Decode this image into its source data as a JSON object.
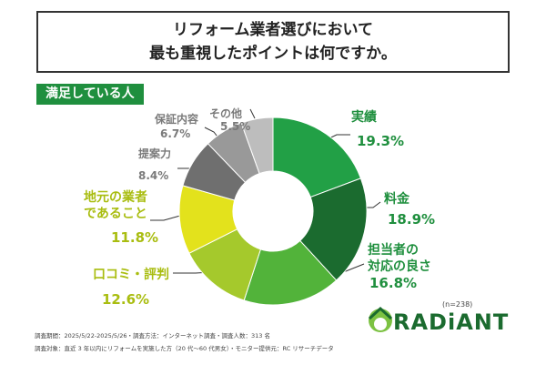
{
  "chart_data": {
    "type": "donut",
    "title": "リフォーム業者選びにおいて\n最も重視したポイントは何ですか。",
    "subtitle": "満足している人",
    "categories": [
      "実績",
      "料金",
      "担当者の\n対応の良さ",
      "口コミ・評判",
      "地元の業者\nであること",
      "提案力",
      "保証内容",
      "その他"
    ],
    "values": [
      19.3,
      18.9,
      16.8,
      12.6,
      11.8,
      8.4,
      6.7,
      5.5
    ],
    "value_labels": [
      "19.3%",
      "18.9%",
      "16.8%",
      "12.6%",
      "11.8%",
      "8.4%",
      "6.7%",
      "5.5%"
    ],
    "colors": [
      "#22a046",
      "#1b6b2f",
      "#52b33a",
      "#a5c92c",
      "#e3e21c",
      "#6f6f6f",
      "#999999",
      "#bdbdbd"
    ],
    "label_colors": [
      "#1f8f3e",
      "#1f8f3e",
      "#1f8f3e",
      "#a9bd10",
      "#a9bd10",
      "#7a7a7a",
      "#7a7a7a",
      "#7a7a7a"
    ],
    "sample_note": "(n=238)",
    "footnotes": [
      "調査期間：2025/5/22-2025/5/26・調査方法：インターネット調査・調査人数：313 名",
      "調査対象：直近 3 年以内にリフォームを実施した方（20 代～60 代男女）・モニター提供元：RC リサーチデータ"
    ],
    "logo": "RADiANT"
  }
}
